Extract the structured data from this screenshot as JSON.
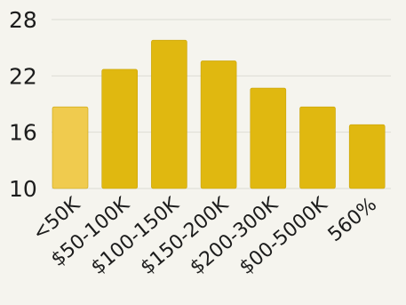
{
  "chart_data": {
    "type": "bar",
    "title": "",
    "xlabel": "",
    "ylabel": "",
    "categories": [
      "<50K",
      "$50-100K",
      "$100-150K",
      "$150-200K",
      "$200-300K",
      "$00-5000K",
      "560%"
    ],
    "values": [
      18.7,
      22.7,
      25.8,
      23.6,
      20.7,
      18.7,
      16.8
    ],
    "yticks": [
      10,
      16,
      22,
      28
    ],
    "ylim": [
      10,
      28
    ],
    "grid": true,
    "highlight_index": 0,
    "colors": {
      "bar": "#e0b810",
      "bar_highlight": "#f0cb4e",
      "bar_edge": "#c9a30c",
      "grid": "#dcdcd4",
      "background": "#f5f4ee",
      "text": "#1c1c1c"
    }
  }
}
